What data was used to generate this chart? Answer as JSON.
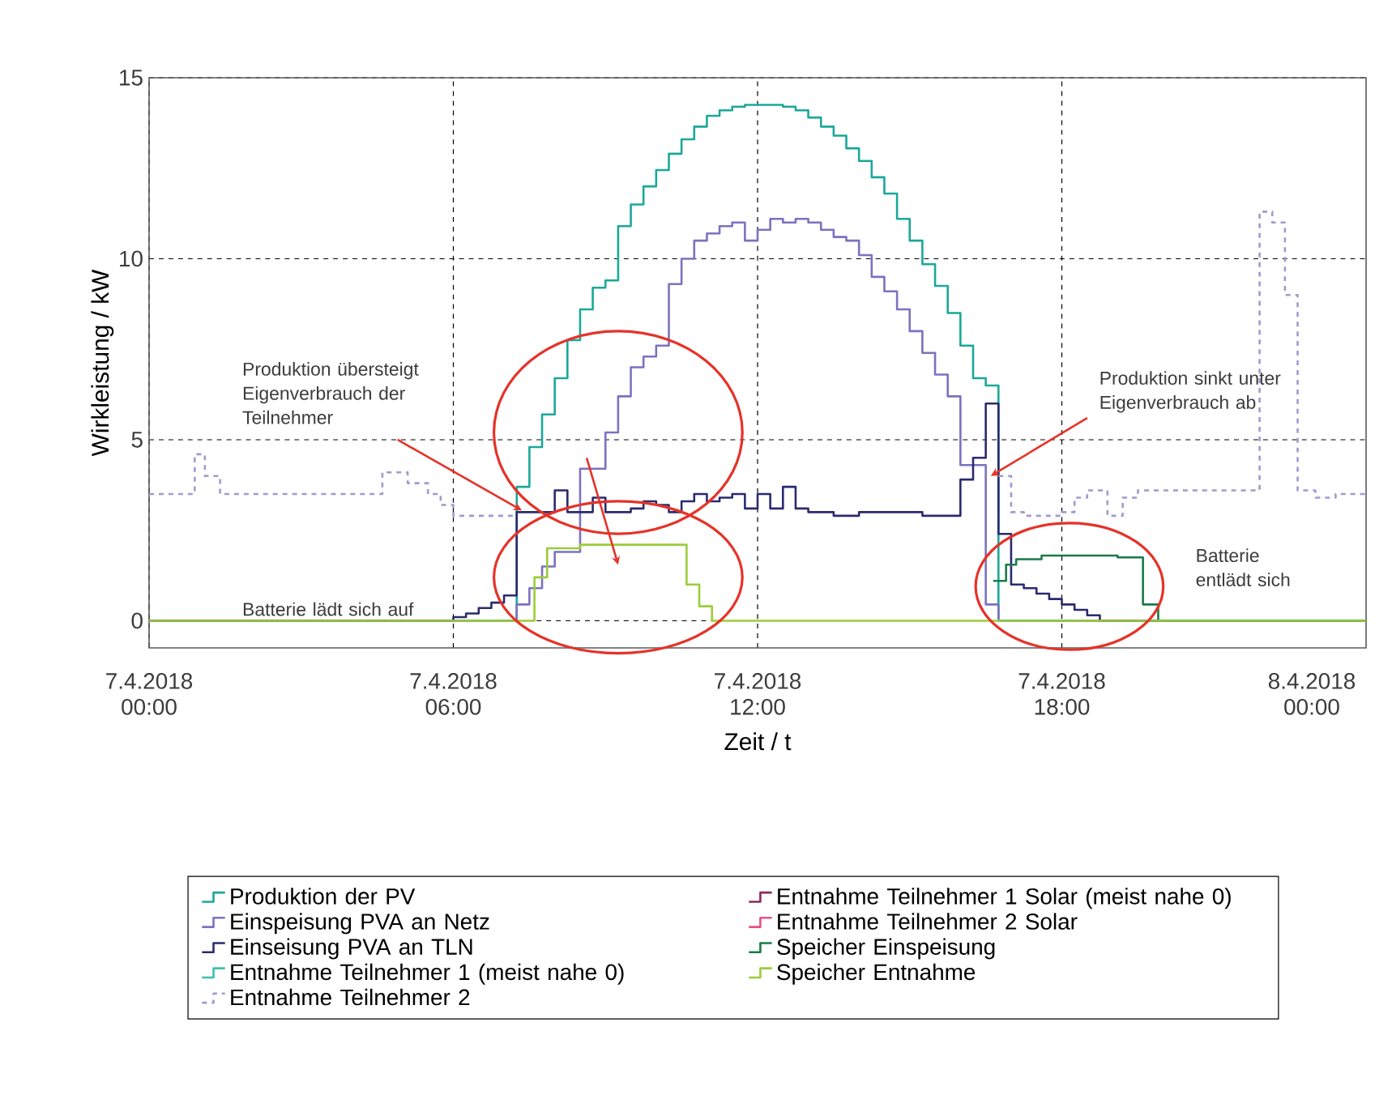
{
  "chart_data": {
    "type": "step",
    "xlabel": "Zeit / t",
    "ylabel": "Wirkleistung / kW",
    "xlim": [
      "2018-04-07T00:00",
      "2018-04-08T00:00"
    ],
    "ylim": [
      -0.75,
      15
    ],
    "xticks": [
      {
        "value": "2018-04-07T00:00",
        "label": "7.4.2018 00:00"
      },
      {
        "value": "2018-04-07T06:00",
        "label": "7.4.2018 06:00"
      },
      {
        "value": "2018-04-07T12:00",
        "label": "7.4.2018 12:00"
      },
      {
        "value": "2018-04-07T18:00",
        "label": "7.4.2018 18:00"
      },
      {
        "value": "2018-04-08T00:00",
        "label": "8.4.2018 00:00"
      }
    ],
    "yticks": [
      0,
      5,
      10,
      15
    ],
    "grid": true,
    "legend": "bottom",
    "annotations": [
      {
        "text": "Produktion übersteigt Eigenverbrauch der Teilnehmer",
        "x": "2018-04-07T07:21",
        "y": 3.05
      },
      "Batterie lädt sich auf",
      {
        "text": "Produktion sinkt unter Eigenverbrauch ab",
        "x": "2018-04-07T16:36",
        "y": 4.0
      },
      "Batterie entlädt sich"
    ],
    "series": [
      {
        "name": "Produktion der PV",
        "color": "#1aa89a",
        "x": [
          "2018-04-07T00:00",
          "2018-04-07T07:15",
          "2018-04-07T07:30",
          "2018-04-07T07:45",
          "2018-04-07T08:00",
          "2018-04-07T08:15",
          "2018-04-07T08:30",
          "2018-04-07T08:45",
          "2018-04-07T09:00",
          "2018-04-07T09:15",
          "2018-04-07T09:30",
          "2018-04-07T09:45",
          "2018-04-07T10:00",
          "2018-04-07T10:15",
          "2018-04-07T10:30",
          "2018-04-07T10:45",
          "2018-04-07T11:00",
          "2018-04-07T11:15",
          "2018-04-07T11:30",
          "2018-04-07T11:45",
          "2018-04-07T12:00",
          "2018-04-07T12:15",
          "2018-04-07T12:30",
          "2018-04-07T12:45",
          "2018-04-07T13:00",
          "2018-04-07T13:15",
          "2018-04-07T13:30",
          "2018-04-07T13:45",
          "2018-04-07T14:00",
          "2018-04-07T14:15",
          "2018-04-07T14:30",
          "2018-04-07T14:45",
          "2018-04-07T15:00",
          "2018-04-07T15:15",
          "2018-04-07T15:30",
          "2018-04-07T15:45",
          "2018-04-07T16:00",
          "2018-04-07T16:15",
          "2018-04-07T16:30",
          "2018-04-07T16:45",
          "2018-04-08T00:00"
        ],
        "values": [
          0,
          3.7,
          4.8,
          5.7,
          6.7,
          7.75,
          8.6,
          9.2,
          9.4,
          10.9,
          11.5,
          12.0,
          12.45,
          12.9,
          13.3,
          13.65,
          13.95,
          14.1,
          14.2,
          14.25,
          14.25,
          14.25,
          14.2,
          14.1,
          13.9,
          13.65,
          13.4,
          13.05,
          12.7,
          12.25,
          11.8,
          11.1,
          10.5,
          9.85,
          9.25,
          8.5,
          7.6,
          6.7,
          6.5,
          0,
          0
        ]
      },
      {
        "name": "Einspeisung PVA an Netz",
        "color": "#7b72c0",
        "x": [
          "2018-04-07T00:00",
          "2018-04-07T07:15",
          "2018-04-07T07:30",
          "2018-04-07T07:45",
          "2018-04-07T08:00",
          "2018-04-07T08:15",
          "2018-04-07T08:30",
          "2018-04-07T08:45",
          "2018-04-07T09:00",
          "2018-04-07T09:15",
          "2018-04-07T09:30",
          "2018-04-07T09:45",
          "2018-04-07T10:00",
          "2018-04-07T10:15",
          "2018-04-07T10:30",
          "2018-04-07T10:45",
          "2018-04-07T11:00",
          "2018-04-07T11:15",
          "2018-04-07T11:30",
          "2018-04-07T11:45",
          "2018-04-07T12:00",
          "2018-04-07T12:15",
          "2018-04-07T12:30",
          "2018-04-07T12:45",
          "2018-04-07T13:00",
          "2018-04-07T13:15",
          "2018-04-07T13:30",
          "2018-04-07T13:45",
          "2018-04-07T14:00",
          "2018-04-07T14:15",
          "2018-04-07T14:30",
          "2018-04-07T14:45",
          "2018-04-07T15:00",
          "2018-04-07T15:15",
          "2018-04-07T15:30",
          "2018-04-07T15:45",
          "2018-04-07T16:00",
          "2018-04-07T16:15",
          "2018-04-07T16:30",
          "2018-04-07T16:45",
          "2018-04-08T00:00"
        ],
        "values": [
          0,
          0.45,
          0.9,
          1.5,
          1.9,
          1.9,
          4.2,
          4.2,
          5.2,
          6.2,
          7.0,
          7.3,
          7.6,
          9.3,
          10.0,
          10.5,
          10.7,
          10.9,
          11.0,
          10.5,
          10.8,
          11.1,
          11.0,
          11.1,
          11.0,
          10.8,
          10.6,
          10.5,
          10.1,
          9.5,
          9.1,
          8.6,
          8.0,
          7.4,
          6.8,
          6.2,
          4.3,
          4.3,
          0.45,
          0,
          0
        ]
      },
      {
        "name": "Einseisung PVA an TLN",
        "color": "#2b2a6e",
        "x": [
          "2018-04-07T00:00",
          "2018-04-07T06:00",
          "2018-04-07T06:15",
          "2018-04-07T06:30",
          "2018-04-07T06:45",
          "2018-04-07T07:00",
          "2018-04-07T07:15",
          "2018-04-07T07:30",
          "2018-04-07T07:45",
          "2018-04-07T08:00",
          "2018-04-07T08:15",
          "2018-04-07T08:30",
          "2018-04-07T08:45",
          "2018-04-07T09:00",
          "2018-04-07T09:15",
          "2018-04-07T09:30",
          "2018-04-07T09:45",
          "2018-04-07T10:00",
          "2018-04-07T10:15",
          "2018-04-07T10:30",
          "2018-04-07T10:45",
          "2018-04-07T11:00",
          "2018-04-07T11:15",
          "2018-04-07T11:30",
          "2018-04-07T11:45",
          "2018-04-07T12:00",
          "2018-04-07T12:15",
          "2018-04-07T12:30",
          "2018-04-07T12:45",
          "2018-04-07T13:00",
          "2018-04-07T13:15",
          "2018-04-07T13:30",
          "2018-04-07T13:45",
          "2018-04-07T14:00",
          "2018-04-07T14:15",
          "2018-04-07T14:30",
          "2018-04-07T14:45",
          "2018-04-07T15:00",
          "2018-04-07T15:15",
          "2018-04-07T15:30",
          "2018-04-07T15:45",
          "2018-04-07T16:00",
          "2018-04-07T16:15",
          "2018-04-07T16:30",
          "2018-04-07T16:45",
          "2018-04-07T17:00",
          "2018-04-07T17:15",
          "2018-04-07T17:30",
          "2018-04-07T17:45",
          "2018-04-07T18:00",
          "2018-04-07T18:15",
          "2018-04-07T18:30",
          "2018-04-07T18:45",
          "2018-04-08T00:00"
        ],
        "values": [
          0,
          0.1,
          0.2,
          0.35,
          0.5,
          0.7,
          3.0,
          3.0,
          3.0,
          3.6,
          3.0,
          3.0,
          3.4,
          3.0,
          3.0,
          3.1,
          3.3,
          3.2,
          3.0,
          3.3,
          3.5,
          3.3,
          3.4,
          3.5,
          3.1,
          3.5,
          3.1,
          3.7,
          3.1,
          3.0,
          3.0,
          2.9,
          2.9,
          3.0,
          3.0,
          3.0,
          3.0,
          3.0,
          2.9,
          2.9,
          2.9,
          3.9,
          4.5,
          6.0,
          2.4,
          1.0,
          0.9,
          0.75,
          0.6,
          0.45,
          0.3,
          0.15,
          0,
          0
        ]
      },
      {
        "name": "Entnahme Teilnehmer 1 (meist nahe 0)",
        "color": "#3cc0b0"
      },
      {
        "name": "Entnahme Teilnehmer 2",
        "color": "#a09ad0",
        "line_style": "dashed",
        "x": [
          "2018-04-07T00:00",
          "2018-04-07T00:54",
          "2018-04-07T01:06",
          "2018-04-07T01:24",
          "2018-04-07T04:36",
          "2018-04-07T05:06",
          "2018-04-07T05:30",
          "2018-04-07T05:45",
          "2018-04-07T06:00",
          "2018-04-07T07:15",
          "2018-04-07T07:18",
          "2018-04-07T16:45",
          "2018-04-07T17:00",
          "2018-04-07T17:15",
          "2018-04-07T18:00",
          "2018-04-07T18:15",
          "2018-04-07T18:30",
          "2018-04-07T18:54",
          "2018-04-07T19:12",
          "2018-04-07T19:30",
          "2018-04-07T21:54",
          "2018-04-07T22:09",
          "2018-04-07T22:24",
          "2018-04-07T22:39",
          "2018-04-07T23:00",
          "2018-04-07T23:24",
          "2018-04-08T00:00"
        ],
        "values": [
          3.5,
          4.6,
          4.0,
          3.5,
          4.1,
          3.8,
          3.5,
          3.2,
          2.9,
          2.9,
          null,
          4.0,
          3.0,
          2.9,
          3.0,
          3.4,
          3.6,
          2.9,
          3.4,
          3.6,
          11.3,
          11.0,
          9.0,
          3.6,
          3.4,
          3.5,
          3.5
        ]
      },
      {
        "name": "Entnahme Teilnehmer 1 Solar (meist nahe 0)",
        "color": "#8b2a5a"
      },
      {
        "name": "Entnahme Teilnehmer 2 Solar",
        "color": "#e8508a"
      },
      {
        "name": "Speicher Einspeisung",
        "color": "#1a7a4a",
        "x": [
          "2018-04-07T16:39",
          "2018-04-07T16:54",
          "2018-04-07T17:06",
          "2018-04-07T17:36",
          "2018-04-07T19:06",
          "2018-04-07T19:36",
          "2018-04-07T19:54",
          "2018-04-08T00:00"
        ],
        "values": [
          1.1,
          1.55,
          1.7,
          1.8,
          1.75,
          0.45,
          0,
          0
        ]
      },
      {
        "name": "Speicher Entnahme",
        "color": "#9acd3a",
        "x": [
          "2018-04-07T00:00",
          "2018-04-07T07:36",
          "2018-04-07T07:51",
          "2018-04-07T08:30",
          "2018-04-07T10:36",
          "2018-04-07T10:51",
          "2018-04-07T11:06",
          "2018-04-08T00:00"
        ],
        "values": [
          0,
          1.2,
          2.0,
          2.1,
          1.0,
          0.4,
          0,
          0
        ]
      }
    ]
  }
}
